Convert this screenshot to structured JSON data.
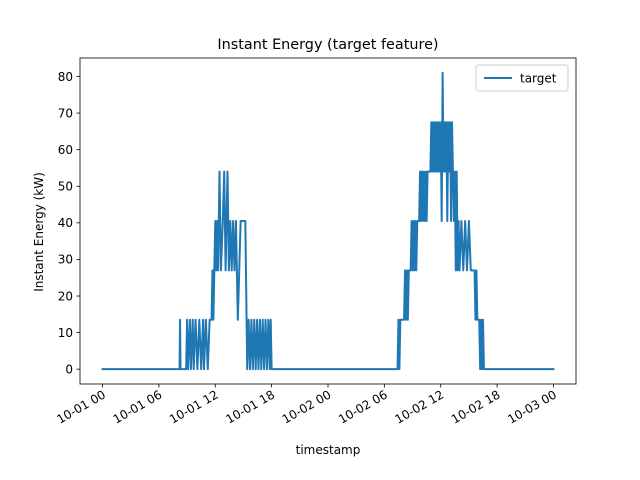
{
  "chart_data": {
    "type": "line",
    "title": "Instant Energy (target feature)",
    "xlabel": "timestamp",
    "ylabel": "Instant Energy (kW)",
    "xlim_hours": [
      -2.4,
      50.4
    ],
    "ylim": [
      -4.05,
      85.05
    ],
    "y_ticks": [
      0,
      10,
      20,
      30,
      40,
      50,
      60,
      70,
      80
    ],
    "x_ticks": [
      {
        "h": 0,
        "label": "10-01 00"
      },
      {
        "h": 6,
        "label": "10-01 06"
      },
      {
        "h": 12,
        "label": "10-01 12"
      },
      {
        "h": 18,
        "label": "10-01 18"
      },
      {
        "h": 24,
        "label": "10-02 00"
      },
      {
        "h": 30,
        "label": "10-02 06"
      },
      {
        "h": 36,
        "label": "10-02 12"
      },
      {
        "h": 42,
        "label": "10-02 18"
      },
      {
        "h": 48,
        "label": "10-03 00"
      }
    ],
    "legend": {
      "placement": "top-right"
    },
    "series": [
      {
        "name": "target",
        "color": "#1f77b4",
        "points": [
          [
            0,
            0
          ],
          [
            8.2,
            0
          ],
          [
            8.25,
            13.5
          ],
          [
            8.3,
            0
          ],
          [
            8.9,
            0
          ],
          [
            9.0,
            13.5
          ],
          [
            9.1,
            0
          ],
          [
            9.3,
            13.5
          ],
          [
            9.4,
            0
          ],
          [
            9.6,
            13.5
          ],
          [
            9.7,
            0
          ],
          [
            9.9,
            13.5
          ],
          [
            10.1,
            0
          ],
          [
            10.3,
            13.5
          ],
          [
            10.5,
            0
          ],
          [
            10.7,
            13.5
          ],
          [
            10.8,
            0
          ],
          [
            11.0,
            13.5
          ],
          [
            11.2,
            0
          ],
          [
            11.4,
            13.5
          ],
          [
            11.6,
            13.5
          ],
          [
            11.7,
            27
          ],
          [
            11.8,
            13.5
          ],
          [
            12.0,
            40.5
          ],
          [
            12.1,
            27
          ],
          [
            12.2,
            40.5
          ],
          [
            12.3,
            27
          ],
          [
            12.45,
            54
          ],
          [
            12.6,
            27
          ],
          [
            12.8,
            40.5
          ],
          [
            12.95,
            54
          ],
          [
            13.1,
            27
          ],
          [
            13.3,
            54
          ],
          [
            13.45,
            27
          ],
          [
            13.6,
            40.5
          ],
          [
            13.75,
            27
          ],
          [
            13.9,
            40.5
          ],
          [
            14.05,
            27
          ],
          [
            14.2,
            40.5
          ],
          [
            14.4,
            13.5
          ],
          [
            14.55,
            27
          ],
          [
            14.7,
            40.5
          ],
          [
            15.2,
            40.5
          ],
          [
            15.4,
            0
          ],
          [
            15.55,
            13.5
          ],
          [
            15.7,
            0
          ],
          [
            15.85,
            13.5
          ],
          [
            16.0,
            0
          ],
          [
            16.15,
            13.5
          ],
          [
            16.3,
            0
          ],
          [
            16.45,
            13.5
          ],
          [
            16.6,
            0
          ],
          [
            16.75,
            13.5
          ],
          [
            16.9,
            0
          ],
          [
            17.05,
            13.5
          ],
          [
            17.2,
            0
          ],
          [
            17.35,
            13.5
          ],
          [
            17.5,
            0
          ],
          [
            17.65,
            13.5
          ],
          [
            17.8,
            0
          ],
          [
            17.9,
            13.5
          ],
          [
            18.0,
            0
          ],
          [
            31.4,
            0
          ],
          [
            31.5,
            13.5
          ],
          [
            31.6,
            0
          ],
          [
            31.7,
            13.5
          ],
          [
            32.1,
            13.5
          ],
          [
            32.2,
            27
          ],
          [
            32.3,
            13.5
          ],
          [
            32.4,
            27
          ],
          [
            32.5,
            13.5
          ],
          [
            32.6,
            27
          ],
          [
            32.8,
            27
          ],
          [
            32.9,
            40.5
          ],
          [
            33.0,
            27
          ],
          [
            33.1,
            40.5
          ],
          [
            33.2,
            27
          ],
          [
            33.3,
            40.5
          ],
          [
            33.4,
            27
          ],
          [
            33.5,
            40.5
          ],
          [
            33.7,
            40.5
          ],
          [
            33.8,
            54
          ],
          [
            33.9,
            40.5
          ],
          [
            34.0,
            54
          ],
          [
            34.1,
            40.5
          ],
          [
            34.2,
            54
          ],
          [
            34.3,
            40.5
          ],
          [
            34.4,
            54
          ],
          [
            34.5,
            40.5
          ],
          [
            34.6,
            54
          ],
          [
            34.9,
            54
          ],
          [
            35.0,
            67.5
          ],
          [
            35.1,
            54
          ],
          [
            35.2,
            67.5
          ],
          [
            35.3,
            54
          ],
          [
            35.4,
            67.5
          ],
          [
            35.5,
            54
          ],
          [
            35.6,
            67.5
          ],
          [
            35.7,
            54
          ],
          [
            35.8,
            67.5
          ],
          [
            35.9,
            54
          ],
          [
            36.0,
            67.5
          ],
          [
            36.1,
            40.5
          ],
          [
            36.2,
            81
          ],
          [
            36.3,
            54
          ],
          [
            36.4,
            67.5
          ],
          [
            36.5,
            54
          ],
          [
            36.6,
            67.5
          ],
          [
            36.7,
            40.5
          ],
          [
            36.8,
            67.5
          ],
          [
            36.9,
            54
          ],
          [
            37.0,
            67.5
          ],
          [
            37.1,
            40.5
          ],
          [
            37.2,
            67.5
          ],
          [
            37.3,
            54
          ],
          [
            37.4,
            40.5
          ],
          [
            37.5,
            54
          ],
          [
            37.6,
            27
          ],
          [
            37.7,
            54
          ],
          [
            37.8,
            27
          ],
          [
            37.9,
            40.5
          ],
          [
            38.0,
            27
          ],
          [
            38.2,
            40.5
          ],
          [
            38.4,
            27
          ],
          [
            38.6,
            40.5
          ],
          [
            38.8,
            27
          ],
          [
            39.0,
            40.5
          ],
          [
            39.2,
            27
          ],
          [
            39.6,
            27
          ],
          [
            39.7,
            13.5
          ],
          [
            39.8,
            27
          ],
          [
            39.9,
            13.5
          ],
          [
            40.1,
            13.5
          ],
          [
            40.2,
            0
          ],
          [
            40.3,
            13.5
          ],
          [
            40.4,
            0
          ],
          [
            40.5,
            13.5
          ],
          [
            40.6,
            0
          ],
          [
            48.0,
            0
          ]
        ]
      }
    ]
  }
}
